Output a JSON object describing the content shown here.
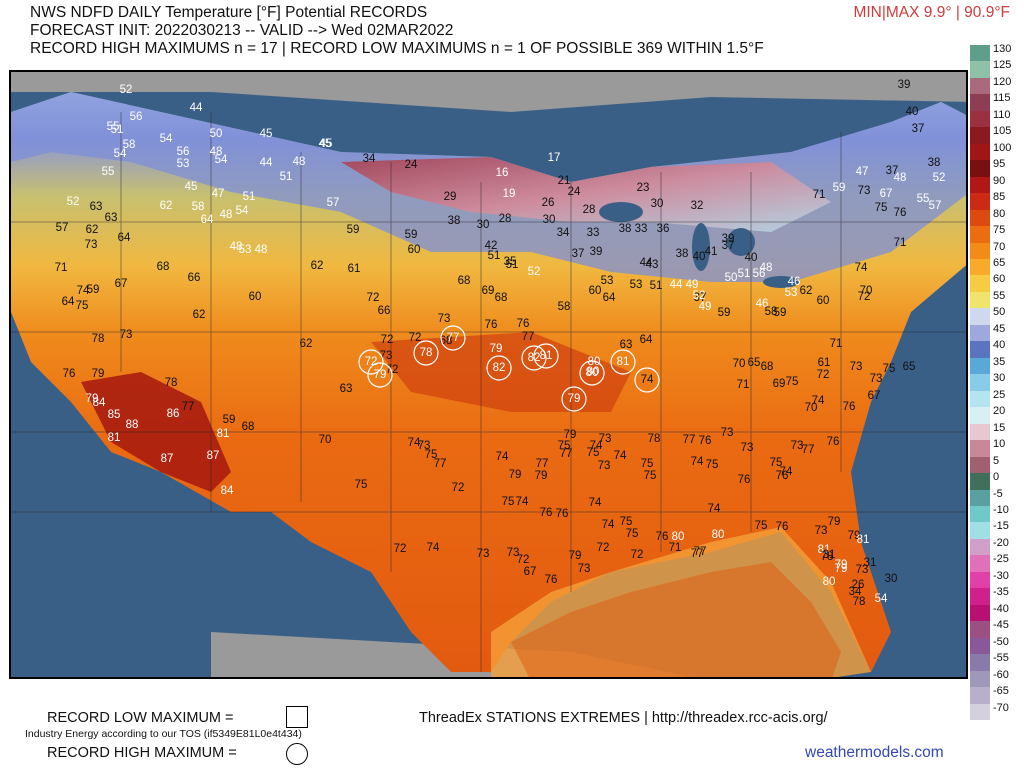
{
  "header": {
    "line1": "NWS NDFD DAILY Temperature [°F] Potential RECORDS",
    "line2": "FORECAST INIT: 2022030213 -- VALID --> Wed 02MAR2022",
    "line3": "RECORD HIGH MAXIMUMS n = 17 | RECORD LOW MAXIMUMS n = 1 OF POSSIBLE 369 WITHIN 1.5°F",
    "minmax": "MIN|MAX 9.9° | 90.9°F"
  },
  "colorbar": {
    "labels": [
      "130",
      "125",
      "120",
      "115",
      "110",
      "105",
      "100",
      "95",
      "90",
      "85",
      "80",
      "75",
      "70",
      "65",
      "60",
      "55",
      "50",
      "45",
      "40",
      "35",
      "30",
      "25",
      "20",
      "15",
      "10",
      "5",
      "0",
      "-5",
      "-10",
      "-15",
      "-20",
      "-25",
      "-30",
      "-35",
      "-40",
      "-45",
      "-50",
      "-55",
      "-60",
      "-65",
      "-70"
    ],
    "colors": [
      "#5e9e8a",
      "#8fc0a8",
      "#a86a7c",
      "#8e3e52",
      "#9b3040",
      "#8a1a1e",
      "#a01515",
      "#781010",
      "#b01818",
      "#cc2a14",
      "#dd4a10",
      "#ec6c10",
      "#f48a18",
      "#f8aa2a",
      "#f6cc44",
      "#f0e46a",
      "#d0d8f0",
      "#9ea8dc",
      "#5a74c0",
      "#5aa8d8",
      "#88cce8",
      "#b4e4f0",
      "#d8f0f4",
      "#e8c8d0",
      "#c88898",
      "#a06070",
      "#40705c",
      "#5aa0a0",
      "#70c8c8",
      "#a0e0e4",
      "#d0a0c8",
      "#e070b8",
      "#e040a8",
      "#d0208c",
      "#b81070",
      "#9a5080",
      "#885898",
      "#8a7aaa",
      "#a098b8",
      "#b8b0c8",
      "#d4d0dc"
    ]
  },
  "stations": [
    {
      "v": "52",
      "c": "w"
    },
    {
      "v": "44",
      "c": "w"
    },
    {
      "v": "56",
      "c": "w"
    },
    {
      "v": "55",
      "c": "w"
    },
    {
      "v": "51",
      "c": "w"
    },
    {
      "v": "54",
      "c": "w"
    },
    {
      "v": "50",
      "c": "w"
    },
    {
      "v": "45",
      "c": "w"
    },
    {
      "v": "58",
      "c": "w"
    },
    {
      "v": "54",
      "c": "w"
    },
    {
      "v": "56",
      "c": "w"
    },
    {
      "v": "48",
      "c": "w"
    },
    {
      "v": "54",
      "c": "w"
    },
    {
      "v": "53",
      "c": "w"
    },
    {
      "v": "44",
      "c": "w"
    },
    {
      "v": "48",
      "c": "w"
    },
    {
      "v": "45",
      "c": "w"
    },
    {
      "v": "55",
      "c": "w"
    },
    {
      "v": "51",
      "c": "w"
    },
    {
      "v": "45",
      "c": "w"
    },
    {
      "v": "47",
      "c": "w"
    },
    {
      "v": "51",
      "c": "w"
    },
    {
      "v": "52",
      "c": "w"
    },
    {
      "v": "62",
      "c": "w"
    },
    {
      "v": "58",
      "c": "w"
    },
    {
      "v": "64",
      "c": "w"
    },
    {
      "v": "54",
      "c": "w"
    },
    {
      "v": "48",
      "c": "w"
    },
    {
      "v": "57",
      "c": "w"
    },
    {
      "v": "63",
      "c": "k"
    },
    {
      "v": "63",
      "c": "k"
    },
    {
      "v": "57",
      "c": "k"
    },
    {
      "v": "64",
      "c": "k"
    },
    {
      "v": "62",
      "c": "k"
    },
    {
      "v": "73",
      "c": "k"
    },
    {
      "v": "48",
      "c": "w"
    },
    {
      "v": "53",
      "c": "w"
    },
    {
      "v": "48",
      "c": "w"
    },
    {
      "v": "59",
      "c": "k"
    },
    {
      "v": "68",
      "c": "k"
    },
    {
      "v": "66",
      "c": "k"
    },
    {
      "v": "62",
      "c": "k"
    },
    {
      "v": "61",
      "c": "k"
    },
    {
      "v": "71",
      "c": "k"
    },
    {
      "v": "74",
      "c": "k"
    },
    {
      "v": "59",
      "c": "k"
    },
    {
      "v": "67",
      "c": "k"
    },
    {
      "v": "64",
      "c": "k"
    },
    {
      "v": "75",
      "c": "k"
    },
    {
      "v": "60",
      "c": "k"
    },
    {
      "v": "62",
      "c": "k"
    },
    {
      "v": "78",
      "c": "k"
    },
    {
      "v": "73",
      "c": "k"
    },
    {
      "v": "62",
      "c": "k"
    },
    {
      "v": "76",
      "c": "k"
    },
    {
      "v": "79",
      "c": "k"
    },
    {
      "v": "78",
      "c": "k"
    },
    {
      "v": "77",
      "c": "k"
    },
    {
      "v": "79",
      "c": "w"
    },
    {
      "v": "84",
      "c": "w"
    },
    {
      "v": "85",
      "c": "w"
    },
    {
      "v": "81",
      "c": "w"
    },
    {
      "v": "88",
      "c": "w"
    },
    {
      "v": "86",
      "c": "w"
    },
    {
      "v": "59",
      "c": "k"
    },
    {
      "v": "68",
      "c": "k"
    },
    {
      "v": "81",
      "c": "w"
    },
    {
      "v": "87",
      "c": "w"
    },
    {
      "v": "87",
      "c": "w"
    },
    {
      "v": "84",
      "c": "w"
    },
    {
      "v": "63",
      "c": "k"
    },
    {
      "v": "70",
      "c": "k"
    },
    {
      "v": "75",
      "c": "k"
    },
    {
      "v": "45",
      "c": "w"
    },
    {
      "v": "34",
      "c": "k"
    },
    {
      "v": "24",
      "c": "k"
    },
    {
      "v": "16",
      "c": "w"
    },
    {
      "v": "17",
      "c": "w"
    },
    {
      "v": "19",
      "c": "w"
    },
    {
      "v": "21",
      "c": "k"
    },
    {
      "v": "24",
      "c": "k"
    },
    {
      "v": "29",
      "c": "k"
    },
    {
      "v": "26",
      "c": "k"
    },
    {
      "v": "23",
      "c": "k"
    },
    {
      "v": "38",
      "c": "k"
    },
    {
      "v": "30",
      "c": "k"
    },
    {
      "v": "28",
      "c": "k"
    },
    {
      "v": "30",
      "c": "k"
    },
    {
      "v": "28",
      "c": "k"
    },
    {
      "v": "30",
      "c": "k"
    },
    {
      "v": "32",
      "c": "k"
    },
    {
      "v": "42",
      "c": "k"
    },
    {
      "v": "35",
      "c": "k"
    },
    {
      "v": "34",
      "c": "k"
    },
    {
      "v": "33",
      "c": "k"
    },
    {
      "v": "38",
      "c": "k"
    },
    {
      "v": "33",
      "c": "k"
    },
    {
      "v": "36",
      "c": "k"
    },
    {
      "v": "59",
      "c": "k"
    },
    {
      "v": "60",
      "c": "k"
    },
    {
      "v": "51",
      "c": "k"
    },
    {
      "v": "51",
      "c": "k"
    },
    {
      "v": "37",
      "c": "k"
    },
    {
      "v": "39",
      "c": "k"
    },
    {
      "v": "38",
      "c": "k"
    },
    {
      "v": "40",
      "c": "k"
    },
    {
      "v": "41",
      "c": "k"
    },
    {
      "v": "37",
      "c": "k"
    },
    {
      "v": "52",
      "c": "w"
    },
    {
      "v": "44",
      "c": "k"
    },
    {
      "v": "43",
      "c": "k"
    },
    {
      "v": "44",
      "c": "w"
    },
    {
      "v": "49",
      "c": "w"
    },
    {
      "v": "39",
      "c": "k"
    },
    {
      "v": "37",
      "c": "k"
    },
    {
      "v": "68",
      "c": "k"
    },
    {
      "v": "58",
      "c": "k"
    },
    {
      "v": "53",
      "c": "k"
    },
    {
      "v": "53",
      "c": "k"
    },
    {
      "v": "51",
      "c": "k"
    },
    {
      "v": "72",
      "c": "k"
    },
    {
      "v": "72",
      "c": "k"
    },
    {
      "v": "69",
      "c": "k"
    },
    {
      "v": "68",
      "c": "k"
    },
    {
      "v": "60",
      "c": "k"
    },
    {
      "v": "64",
      "c": "k"
    },
    {
      "v": "52",
      "c": "w"
    },
    {
      "v": "49",
      "c": "w"
    },
    {
      "v": "40",
      "c": "k"
    },
    {
      "v": "46",
      "c": "w"
    },
    {
      "v": "48",
      "c": "w"
    },
    {
      "v": "66",
      "c": "k"
    },
    {
      "v": "73",
      "c": "k"
    },
    {
      "v": "76",
      "c": "k"
    },
    {
      "v": "76",
      "c": "k"
    },
    {
      "v": "77",
      "c": "k"
    },
    {
      "v": "72",
      "c": "k"
    },
    {
      "v": "73",
      "c": "k"
    },
    {
      "v": "68",
      "c": "k"
    },
    {
      "v": "63",
      "c": "k"
    },
    {
      "v": "64",
      "c": "k"
    },
    {
      "v": "59",
      "c": "k"
    },
    {
      "v": "50",
      "c": "w"
    },
    {
      "v": "51",
      "c": "w"
    },
    {
      "v": "56",
      "c": "w"
    },
    {
      "v": "46",
      "c": "w"
    },
    {
      "v": "53",
      "c": "w"
    },
    {
      "v": "58",
      "c": "k"
    },
    {
      "v": "59",
      "c": "k"
    },
    {
      "v": "62",
      "c": "k"
    },
    {
      "v": "60",
      "c": "k"
    },
    {
      "v": "72",
      "c": "k"
    },
    {
      "v": "72",
      "c": "w",
      "circle": true
    },
    {
      "v": "79",
      "c": "w",
      "circle": true
    },
    {
      "v": "78",
      "c": "w",
      "circle": true
    },
    {
      "v": "77",
      "c": "w",
      "circle": true
    },
    {
      "v": "79",
      "c": "w"
    },
    {
      "v": "82",
      "c": "w",
      "circle": true
    },
    {
      "v": "82",
      "c": "w",
      "circle": true
    },
    {
      "v": "81",
      "c": "w",
      "circle": true
    },
    {
      "v": "80",
      "c": "w"
    },
    {
      "v": "80",
      "c": "w"
    },
    {
      "v": "80",
      "c": "w",
      "circle": true
    },
    {
      "v": "81",
      "c": "w",
      "circle": true
    },
    {
      "v": "74",
      "c": "k",
      "circle": true
    },
    {
      "v": "79",
      "c": "w",
      "circle": true
    },
    {
      "v": "65",
      "c": "k"
    },
    {
      "v": "70",
      "c": "k"
    },
    {
      "v": "68",
      "c": "k"
    },
    {
      "v": "61",
      "c": "k"
    },
    {
      "v": "71",
      "c": "k"
    },
    {
      "v": "73",
      "c": "k"
    },
    {
      "v": "72",
      "c": "k"
    },
    {
      "v": "73",
      "c": "k"
    },
    {
      "v": "69",
      "c": "k"
    },
    {
      "v": "75",
      "c": "k"
    },
    {
      "v": "71",
      "c": "k"
    },
    {
      "v": "70",
      "c": "k"
    },
    {
      "v": "74",
      "c": "k"
    },
    {
      "v": "76",
      "c": "k"
    },
    {
      "v": "75",
      "c": "k"
    },
    {
      "v": "67",
      "c": "k"
    },
    {
      "v": "75",
      "c": "k"
    },
    {
      "v": "73",
      "c": "k"
    },
    {
      "v": "74",
      "c": "k"
    },
    {
      "v": "77",
      "c": "k"
    },
    {
      "v": "74",
      "c": "k"
    },
    {
      "v": "79",
      "c": "k"
    },
    {
      "v": "79",
      "c": "k"
    },
    {
      "v": "79",
      "c": "k"
    },
    {
      "v": "77",
      "c": "k"
    },
    {
      "v": "75",
      "c": "k"
    },
    {
      "v": "77",
      "c": "k"
    },
    {
      "v": "75",
      "c": "k"
    },
    {
      "v": "73",
      "c": "k"
    },
    {
      "v": "74",
      "c": "k"
    },
    {
      "v": "75",
      "c": "k"
    },
    {
      "v": "75",
      "c": "k"
    },
    {
      "v": "74",
      "c": "k"
    },
    {
      "v": "73",
      "c": "k"
    },
    {
      "v": "76",
      "c": "k"
    },
    {
      "v": "76",
      "c": "k"
    },
    {
      "v": "77",
      "c": "k"
    },
    {
      "v": "76",
      "c": "k"
    },
    {
      "v": "78",
      "c": "k"
    },
    {
      "v": "73",
      "c": "k"
    },
    {
      "v": "74",
      "c": "k"
    },
    {
      "v": "75",
      "c": "k"
    },
    {
      "v": "73",
      "c": "k"
    },
    {
      "v": "73",
      "c": "k"
    },
    {
      "v": "77",
      "c": "k"
    },
    {
      "v": "74",
      "c": "k"
    },
    {
      "v": "75",
      "c": "k"
    },
    {
      "v": "76",
      "c": "k"
    },
    {
      "v": "72",
      "c": "k"
    },
    {
      "v": "75",
      "c": "k"
    },
    {
      "v": "74",
      "c": "k"
    },
    {
      "v": "76",
      "c": "k"
    },
    {
      "v": "76",
      "c": "k"
    },
    {
      "v": "74",
      "c": "k"
    },
    {
      "v": "74",
      "c": "k"
    },
    {
      "v": "75",
      "c": "k"
    },
    {
      "v": "75",
      "c": "k"
    },
    {
      "v": "74",
      "c": "k"
    },
    {
      "v": "75",
      "c": "k"
    },
    {
      "v": "76",
      "c": "k"
    },
    {
      "v": "73",
      "c": "k"
    },
    {
      "v": "79",
      "c": "k"
    },
    {
      "v": "79",
      "c": "k"
    },
    {
      "v": "73",
      "c": "k"
    },
    {
      "v": "74",
      "c": "k"
    },
    {
      "v": "72",
      "c": "k"
    },
    {
      "v": "73",
      "c": "k"
    },
    {
      "v": "73",
      "c": "k"
    },
    {
      "v": "72",
      "c": "k"
    },
    {
      "v": "67",
      "c": "k"
    },
    {
      "v": "76",
      "c": "k"
    },
    {
      "v": "79",
      "c": "k"
    },
    {
      "v": "73",
      "c": "k"
    },
    {
      "v": "72",
      "c": "k"
    },
    {
      "v": "71",
      "c": "k"
    },
    {
      "v": "76",
      "c": "k"
    },
    {
      "v": "72",
      "c": "k"
    },
    {
      "v": "80",
      "c": "w"
    },
    {
      "v": "80",
      "c": "w"
    },
    {
      "v": "77",
      "c": "k"
    },
    {
      "v": "77",
      "c": "k"
    },
    {
      "v": "79",
      "c": "w"
    },
    {
      "v": "81",
      "c": "w"
    },
    {
      "v": "81",
      "c": "w"
    },
    {
      "v": "78",
      "c": "k"
    },
    {
      "v": "79",
      "c": "w"
    },
    {
      "v": "80",
      "c": "w"
    },
    {
      "v": "78",
      "c": "k"
    },
    {
      "v": "54",
      "c": "w"
    },
    {
      "v": "26",
      "c": "k"
    },
    {
      "v": "31",
      "c": "k"
    },
    {
      "v": "34",
      "c": "k"
    },
    {
      "v": "30",
      "c": "k"
    },
    {
      "v": "31",
      "c": "k"
    },
    {
      "v": "39",
      "c": "k"
    },
    {
      "v": "40",
      "c": "k"
    },
    {
      "v": "37",
      "c": "k"
    },
    {
      "v": "38",
      "c": "k"
    },
    {
      "v": "37",
      "c": "k"
    },
    {
      "v": "47",
      "c": "w"
    },
    {
      "v": "48",
      "c": "w"
    },
    {
      "v": "52",
      "c": "w"
    },
    {
      "v": "55",
      "c": "w"
    },
    {
      "v": "57",
      "c": "w"
    },
    {
      "v": "59",
      "c": "w"
    },
    {
      "v": "71",
      "c": "k"
    },
    {
      "v": "73",
      "c": "k"
    },
    {
      "v": "67",
      "c": "w"
    },
    {
      "v": "75",
      "c": "k"
    },
    {
      "v": "76",
      "c": "k"
    },
    {
      "v": "71",
      "c": "k"
    },
    {
      "v": "72",
      "c": "k"
    },
    {
      "v": "74",
      "c": "k"
    },
    {
      "v": "70",
      "c": "k"
    },
    {
      "v": "65",
      "c": "k"
    }
  ],
  "legend": {
    "low_label": "RECORD LOW MAXIMUM =",
    "high_label": "RECORD HIGH MAXIMUM =",
    "tos_notice": "Industry Energy according to our TOS (if5349E81L0e4t434)",
    "threadex": "ThreadEx STATIONS EXTREMES | http://threadex.rcc-acis.org/",
    "watermark": "weathermodels.com"
  }
}
